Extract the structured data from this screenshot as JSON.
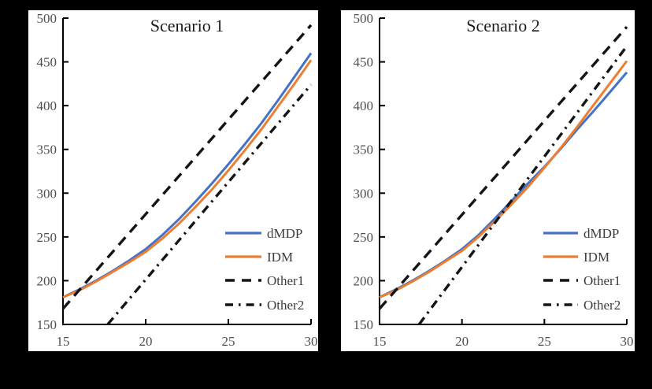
{
  "figure": {
    "background_color": "#000000",
    "panel_color": "#ffffff",
    "accent_blue": "#4472C4",
    "accent_orange": "#ED7D31",
    "line_black": "#141414"
  },
  "chart_data": [
    {
      "type": "line",
      "title": "Scenario 1",
      "xlabel": "",
      "ylabel": "",
      "xlim": [
        15,
        30
      ],
      "ylim": [
        150,
        500
      ],
      "xticks": [
        15,
        20,
        25,
        30
      ],
      "yticks": [
        150,
        200,
        250,
        300,
        350,
        400,
        450,
        500
      ],
      "grid": false,
      "legend_position": "lower right",
      "series": [
        {
          "name": "dMDP",
          "color": "#4472C4",
          "style": "solid",
          "x": [
            15,
            16,
            17,
            18,
            19,
            20,
            21,
            22,
            23,
            24,
            25,
            26,
            27,
            28,
            29,
            30
          ],
          "y": [
            181,
            190,
            200,
            211,
            223,
            236,
            252,
            270,
            290,
            311,
            333,
            356,
            380,
            406,
            433,
            460
          ]
        },
        {
          "name": "IDM",
          "color": "#ED7D31",
          "style": "solid",
          "x": [
            15,
            16,
            17,
            18,
            19,
            20,
            21,
            22,
            23,
            24,
            25,
            26,
            27,
            28,
            29,
            30
          ],
          "y": [
            181,
            189,
            199,
            210,
            221,
            233,
            248,
            265,
            284,
            304,
            326,
            349,
            373,
            399,
            425,
            452
          ]
        },
        {
          "name": "Other1",
          "color": "#141414",
          "style": "dashed",
          "x": [
            15,
            30
          ],
          "y": [
            168,
            492
          ]
        },
        {
          "name": "Other2",
          "color": "#141414",
          "style": "dashdot",
          "x": [
            17.7,
            30
          ],
          "y": [
            150,
            424
          ]
        }
      ]
    },
    {
      "type": "line",
      "title": "Scenario 2",
      "xlabel": "",
      "ylabel": "",
      "xlim": [
        15,
        30
      ],
      "ylim": [
        150,
        500
      ],
      "xticks": [
        15,
        20,
        25,
        30
      ],
      "yticks": [
        150,
        200,
        250,
        300,
        350,
        400,
        450,
        500
      ],
      "grid": false,
      "legend_position": "lower right",
      "series": [
        {
          "name": "dMDP",
          "color": "#4472C4",
          "style": "solid",
          "x": [
            15,
            16,
            17,
            18,
            19,
            20,
            21,
            22,
            23,
            24,
            25,
            26,
            27,
            28,
            29,
            30
          ],
          "y": [
            181,
            190,
            200,
            211,
            223,
            236,
            252,
            271,
            291,
            311,
            330,
            351,
            373,
            394,
            416,
            438
          ]
        },
        {
          "name": "IDM",
          "color": "#ED7D31",
          "style": "solid",
          "x": [
            15,
            16,
            17,
            18,
            19,
            20,
            21,
            22,
            23,
            24,
            25,
            26,
            27,
            28,
            29,
            30
          ],
          "y": [
            181,
            189,
            199,
            210,
            222,
            234,
            250,
            268,
            287,
            307,
            329,
            352,
            376,
            401,
            426,
            451
          ]
        },
        {
          "name": "Other1",
          "color": "#141414",
          "style": "dashed",
          "x": [
            15,
            30
          ],
          "y": [
            168,
            490
          ]
        },
        {
          "name": "Other2",
          "color": "#141414",
          "style": "dashdot",
          "x": [
            17.4,
            30
          ],
          "y": [
            150,
            468
          ]
        }
      ]
    }
  ]
}
